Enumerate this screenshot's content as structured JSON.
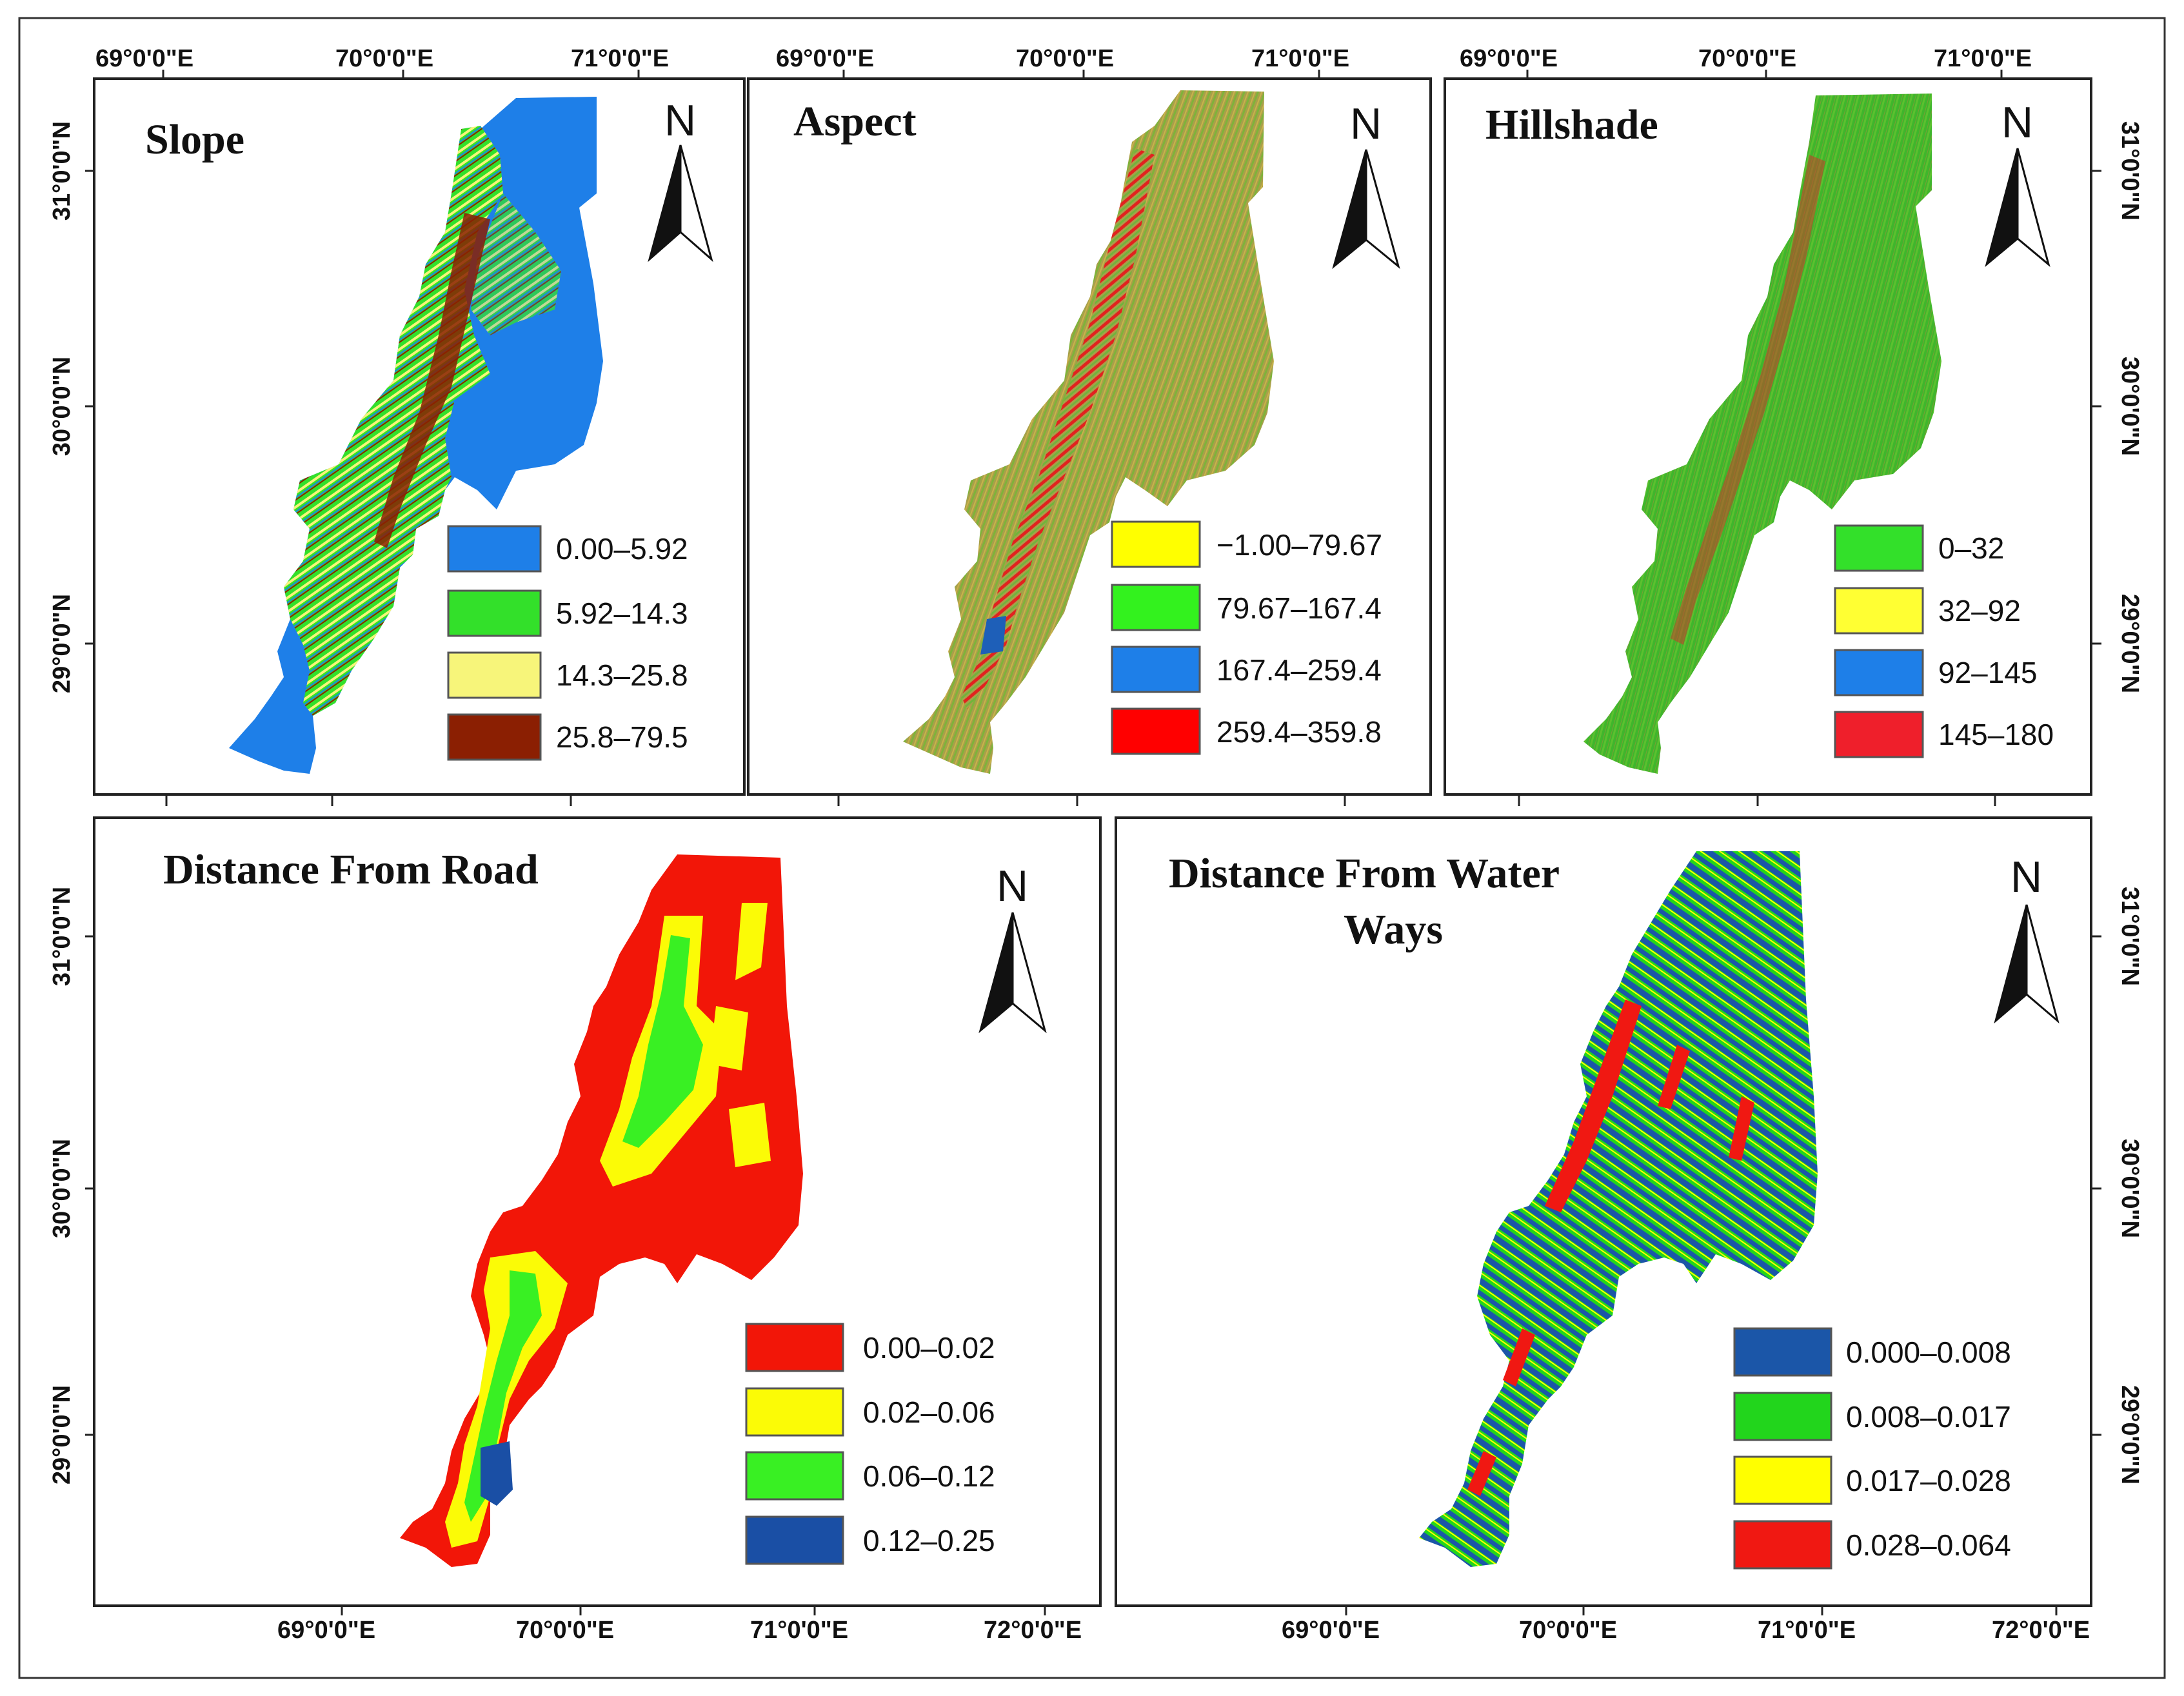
{
  "colors": {
    "slope_base": "#1e7fe8",
    "slope_green": "#33e02a",
    "slope_yellow": "#f7f57a",
    "slope_brown": "#8b1f02",
    "aspect_base": "#a7a04a",
    "aspect_red": "#e1231f",
    "hill_base": "#3fb62c",
    "hill_red": "#c8382a",
    "road_red": "#f21608",
    "road_yellow": "#fbfb06",
    "road_green": "#39f023",
    "road_blue": "#1a4fa5",
    "water_blue": "#1b56a8",
    "water_green": "#22d51c",
    "water_yellow": "#ffff00",
    "water_red": "#f01812"
  },
  "panels": [
    {
      "id": "slope",
      "title": "Slope",
      "north_label": "N",
      "legend": [
        {
          "label": "0.00–5.92",
          "color": "#1e7fe8"
        },
        {
          "label": "5.92–14.3",
          "color": "#33e02a"
        },
        {
          "label": "14.3–25.8",
          "color": "#f7f57a"
        },
        {
          "label": "25.8–79.5",
          "color": "#8b1f02"
        }
      ]
    },
    {
      "id": "aspect",
      "title": "Aspect",
      "north_label": "N",
      "legend": [
        {
          "label": "−1.00–79.67",
          "color": "#ffff00"
        },
        {
          "label": "79.67–167.4",
          "color": "#33f21e"
        },
        {
          "label": "167.4–259.4",
          "color": "#1e7fe8"
        },
        {
          "label": "259.4–359.8",
          "color": "#ff0000"
        }
      ]
    },
    {
      "id": "hillshade",
      "title": "Hillshade",
      "north_label": "N",
      "legend": [
        {
          "label": "0–32",
          "color": "#33e02a"
        },
        {
          "label": "32–92",
          "color": "#ffff33"
        },
        {
          "label": "92–145",
          "color": "#1e7fe8"
        },
        {
          "label": "145–180",
          "color": "#ef1f2b"
        }
      ]
    },
    {
      "id": "road",
      "title": "Distance From Road",
      "north_label": "N",
      "legend": [
        {
          "label": "0.00–0.02",
          "color": "#f21608"
        },
        {
          "label": "0.02–0.06",
          "color": "#fbfb06"
        },
        {
          "label": "0.06–0.12",
          "color": "#39f023"
        },
        {
          "label": "0.12–0.25",
          "color": "#1a4fa5"
        }
      ]
    },
    {
      "id": "water",
      "title_line1": "Distance From Water",
      "title_line2": "Ways",
      "north_label": "N",
      "legend": [
        {
          "label": "0.000–0.008",
          "color": "#1b56a8"
        },
        {
          "label": "0.008–0.017",
          "color": "#22d51c"
        },
        {
          "label": "0.017–0.028",
          "color": "#ffff00"
        },
        {
          "label": "0.028–0.064",
          "color": "#f01812"
        }
      ]
    }
  ],
  "coords": {
    "top_lon": [
      "69°0'0\"E",
      "70°0'0\"E",
      "71°0'0\"E"
    ],
    "bottom_lon": [
      "69°0'0\"E",
      "70°0'0\"E",
      "71°0'0\"E",
      "72°0'0\"E"
    ],
    "lat": [
      "31°0'0\"N",
      "30°0'0\"N",
      "29°0'0\"N"
    ]
  }
}
